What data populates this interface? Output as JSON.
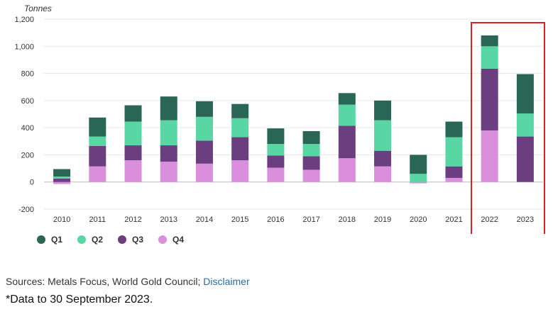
{
  "chart_data": {
    "type": "bar",
    "stacked": true,
    "ylabel": "Tonnes",
    "ylim": [
      -200,
      1200
    ],
    "yticks": [
      -200,
      0,
      200,
      400,
      600,
      800,
      "1,000",
      "1,200"
    ],
    "ytick_labels": [
      "-200",
      "0",
      "200",
      "400",
      "600",
      "800",
      "1,000",
      "1,200"
    ],
    "categories": [
      "2010",
      "2011",
      "2012",
      "2013",
      "2014",
      "2015",
      "2016",
      "2017",
      "2018",
      "2019",
      "2020",
      "2021",
      "2022",
      "2023"
    ],
    "series": [
      {
        "name": "Q4",
        "color": "#d98fdc",
        "values": [
          -15,
          115,
          160,
          150,
          135,
          160,
          105,
          90,
          175,
          115,
          -10,
          30,
          380,
          0
        ]
      },
      {
        "name": "Q3",
        "color": "#6b3f7f",
        "values": [
          25,
          150,
          110,
          120,
          170,
          170,
          90,
          100,
          240,
          115,
          0,
          85,
          455,
          335
        ]
      },
      {
        "name": "Q2",
        "color": "#58d6a3",
        "values": [
          15,
          70,
          175,
          185,
          175,
          140,
          85,
          90,
          155,
          225,
          60,
          215,
          165,
          170
        ]
      },
      {
        "name": "Q1",
        "color": "#2a6656",
        "values": [
          55,
          140,
          120,
          175,
          115,
          105,
          115,
          95,
          85,
          145,
          140,
          115,
          80,
          290
        ]
      }
    ],
    "legend_order": [
      "Q1",
      "Q2",
      "Q3",
      "Q4"
    ],
    "legend_position": "bottom-left",
    "grid": true,
    "highlight": {
      "categories": [
        "2022",
        "2023"
      ],
      "color": "#e02020"
    }
  },
  "sources": {
    "prefix": "Sources: Metals Focus, World Gold Council; ",
    "link": "Disclaimer"
  },
  "footnote": "*Data to 30 September 2023."
}
